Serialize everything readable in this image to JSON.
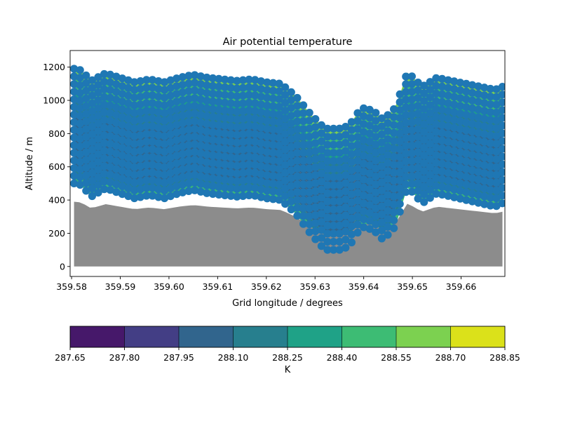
{
  "chart_data": {
    "type": "contour",
    "title": "Air potential temperature",
    "xlabel": "Grid longitude / degrees",
    "ylabel": "Altitude / m",
    "xlim": [
      359.5797,
      359.669
    ],
    "ylim": [
      -60,
      1300
    ],
    "x_ticks": [
      359.58,
      359.59,
      359.6,
      359.61,
      359.62,
      359.63,
      359.64,
      359.65,
      359.66
    ],
    "x_tick_labels": [
      "359.58",
      "359.59",
      "359.60",
      "359.61",
      "359.62",
      "359.63",
      "359.64",
      "359.65",
      "359.66"
    ],
    "y_ticks": [
      0,
      200,
      400,
      600,
      800,
      1000,
      1200
    ],
    "y_tick_labels": [
      "0",
      "200",
      "400",
      "600",
      "800",
      "1000",
      "1200"
    ],
    "grid": false,
    "terrain": {
      "color": "#8c8c8c",
      "x": [
        359.5805,
        359.582,
        359.584,
        359.587,
        359.59,
        359.593,
        359.596,
        359.599,
        359.602,
        359.605,
        359.608,
        359.611,
        359.614,
        359.617,
        359.62,
        359.623,
        359.626,
        359.629,
        359.632,
        359.635,
        359.637,
        359.6395,
        359.642,
        359.644,
        359.6465,
        359.649,
        359.652,
        359.655,
        359.658,
        359.661,
        359.664,
        359.667,
        359.6685
      ],
      "altitude": [
        390,
        385,
        350,
        375,
        360,
        345,
        355,
        345,
        360,
        370,
        360,
        355,
        350,
        355,
        345,
        340,
        300,
        240,
        190,
        190,
        200,
        260,
        250,
        220,
        260,
        380,
        330,
        360,
        350,
        340,
        330,
        320,
        330
      ]
    },
    "level_count": 16,
    "marker_color": "#1f77b4",
    "colorbar": {
      "label": "K",
      "orientation": "horizontal",
      "boundaries": [
        287.65,
        287.8,
        287.95,
        288.1,
        288.25,
        288.4,
        288.55,
        288.7,
        288.85
      ],
      "tick_labels": [
        "287.65",
        "287.80",
        "287.95",
        "288.10",
        "288.25",
        "288.40",
        "288.55",
        "288.70",
        "288.85"
      ],
      "colors": [
        "#46186a",
        "#433e85",
        "#31658d",
        "#277f8e",
        "#1fa287",
        "#3dbc74",
        "#7cd150",
        "#dbe11a"
      ]
    }
  }
}
